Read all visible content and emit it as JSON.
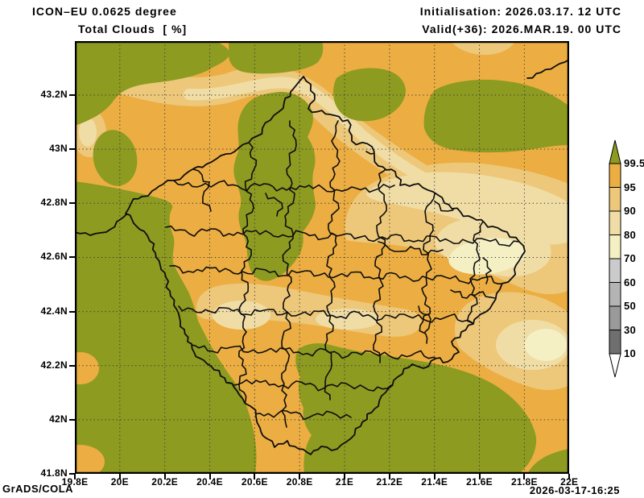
{
  "header": {
    "model_title": "ICON–EU 0.0625 degree",
    "variable_title": "Total Clouds  [ %]",
    "init_line": "Initialisation: 2026.03.17. 12 UTC",
    "valid_line": "Valid(+36): 2026.MAR.19. 00 UTC"
  },
  "footer": {
    "left": "GrADS/COLA",
    "right": "2026-03-17-16:25"
  },
  "axes": {
    "x_ticks": [
      "19.8E",
      "20E",
      "20.2E",
      "20.4E",
      "20.6E",
      "20.8E",
      "21E",
      "21.2E",
      "21.4E",
      "21.6E",
      "21.8E",
      "22E"
    ],
    "y_ticks": [
      "43.2N",
      "43N",
      "42.8N",
      "42.6N",
      "42.4N",
      "42.2N",
      "42N",
      "41.8N"
    ]
  },
  "colorbar": {
    "labels": [
      "99.5",
      "95",
      "90",
      "80",
      "70",
      "60",
      "50",
      "30",
      "10"
    ],
    "colors_top_to_bottom": [
      "#8d9b21",
      "#ecae42",
      "#edc87a",
      "#f0dda6",
      "#f4f0c4",
      "#cbcbcb",
      "#b4b4b4",
      "#9a9a9a",
      "#6f6f6f",
      "#ffffff"
    ]
  },
  "map_colors": {
    "ge_99_5": "#8d9b21",
    "p95_99_5": "#ecae42",
    "p90_95": "#edc87a",
    "p80_90": "#f0dda6",
    "p70_80": "#f4f0c4",
    "border": "#0d0d0d",
    "grid": "#3a3a3a"
  },
  "chart_data": {
    "type": "heatmap",
    "title": "Total Clouds [ %]",
    "model": "ICON–EU 0.0625 degree",
    "init_time": "2026.03.17. 12 UTC",
    "valid_time": "2026.MAR.19. 00 UTC",
    "lead_hours": 36,
    "x_axis": {
      "ticks": [
        "19.8E",
        "20E",
        "20.2E",
        "20.4E",
        "20.6E",
        "20.8E",
        "21E",
        "21.2E",
        "21.4E",
        "21.6E",
        "21.8E",
        "22E"
      ],
      "range_deg_east": [
        19.8,
        22.0
      ],
      "grid": "dotted every 0.2 degree"
    },
    "y_axis": {
      "ticks": [
        "41.8N",
        "42N",
        "42.2N",
        "42.4N",
        "42.6N",
        "42.8N",
        "43N",
        "43.2N"
      ],
      "range_deg_north": [
        41.8,
        43.4
      ],
      "grid": "dotted every 0.2 degree"
    },
    "levels_percent": [
      10,
      30,
      50,
      60,
      70,
      80,
      90,
      95,
      99.5
    ],
    "level_colors": [
      "#ffffff",
      "#6f6f6f",
      "#9a9a9a",
      "#b4b4b4",
      "#cbcbcb",
      "#f4f0c4",
      "#f0dda6",
      "#edc87a",
      "#ecae42",
      "#8d9b21"
    ],
    "legend_position": "right vertical colorbar with end arrows",
    "overlay": "black national and municipal boundary lines (Kosovo region)",
    "filled_regions": [
      {
        "value_range": ">=99.5",
        "color": "#8d9b21",
        "where": "top-left corner, north-central band, blob east of 21.2E near 43.1N, entire southwest quadrant and southern band, small wedge at bottom-right corner"
      },
      {
        "value_range": "95-99.5",
        "color": "#ecae42",
        "where": "dominant background over the remainder of the map"
      },
      {
        "value_range": "90-95",
        "color": "#edc87a",
        "where": "diagonal NW-SE band from 20E 43.2N toward 21.4E 42.7N, large east-central region 21E-22E 42.4N-42.8N, southeast patch near 21.9E 42.35N, central valley band near 20.5E-21E 42.35N"
      },
      {
        "value_range": "80-90",
        "color": "#f0dda6",
        "where": "cores of the diagonal band and of the east-central and southeast regions"
      },
      {
        "value_range": "70-80",
        "color": "#f4f0c4",
        "where": "small minima near 21.5E-21.7E 42.5N-42.6N and near 21.95E 42.35N"
      }
    ]
  }
}
